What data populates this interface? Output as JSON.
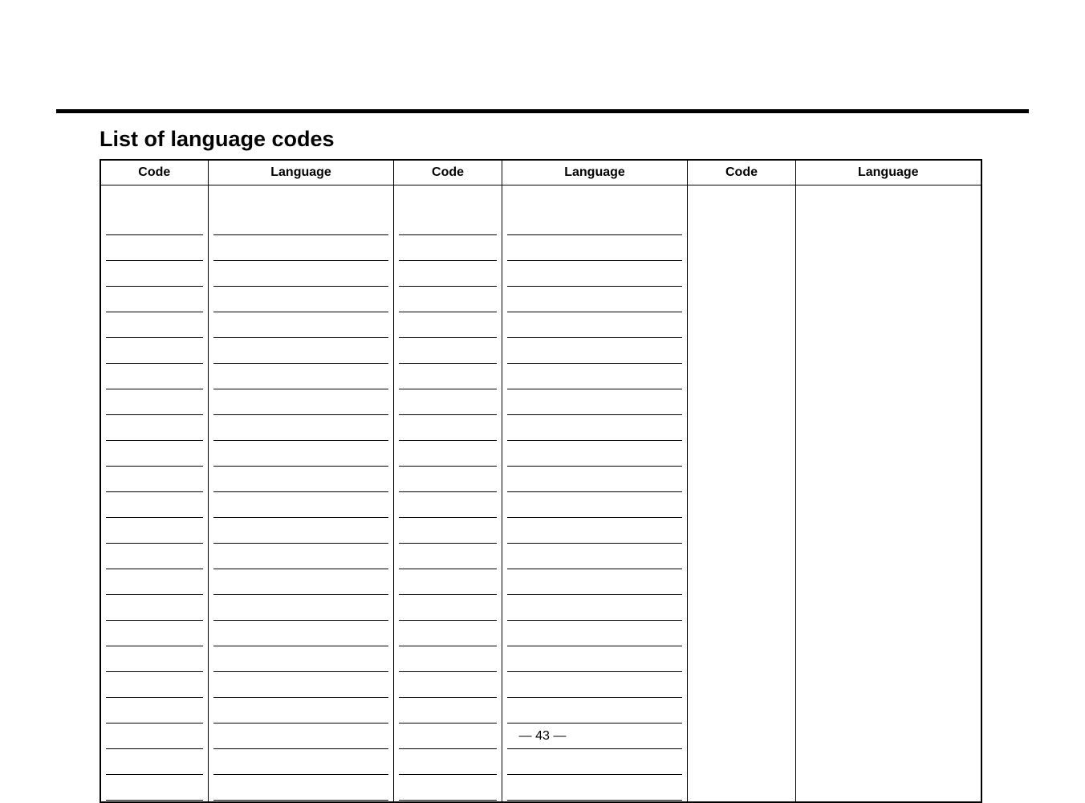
{
  "title": "List of language codes",
  "headers": {
    "code": "Code",
    "language": "Language"
  },
  "table": {
    "column_pairs": 3,
    "body_row_count": 24,
    "underline_rows_col_pair_1": 23,
    "underline_rows_col_pair_2": 23,
    "underline_rows_col_pair_3": 0,
    "colors": {
      "border": "#000000",
      "background": "#ffffff",
      "text": "#000000"
    },
    "font_sizes": {
      "title": 27,
      "header": 16,
      "footer": 16
    }
  },
  "page_number_text": "— 43 —"
}
